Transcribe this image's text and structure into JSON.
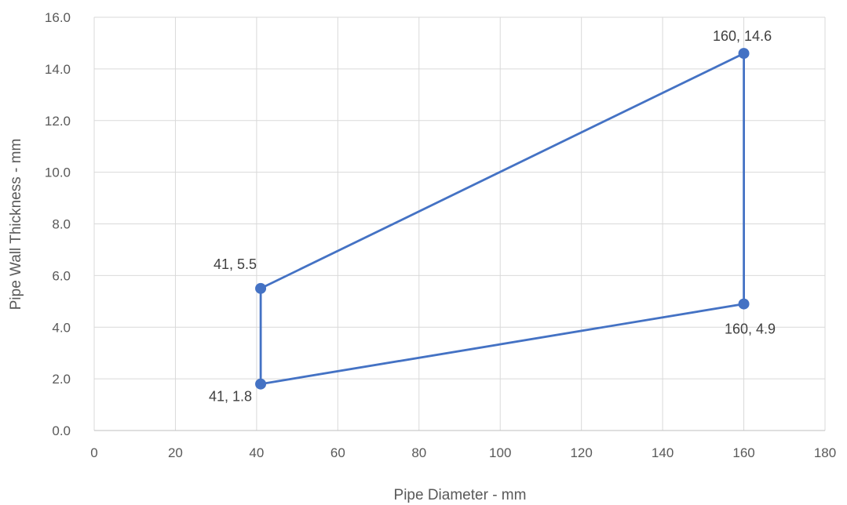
{
  "chart_data": {
    "type": "scatter",
    "title": "",
    "xlabel": "Pipe Diameter - mm",
    "ylabel": "Pipe Wall Thickness - mm",
    "xlim": [
      0,
      180
    ],
    "ylim": [
      0,
      16
    ],
    "x_ticks": [
      "0",
      "20",
      "40",
      "60",
      "80",
      "100",
      "120",
      "140",
      "160",
      "180"
    ],
    "y_ticks": [
      "0.0",
      "2.0",
      "4.0",
      "6.0",
      "8.0",
      "10.0",
      "12.0",
      "14.0",
      "16.0"
    ],
    "grid": true,
    "line_color": "#4472C4",
    "marker": "circle",
    "series": [
      {
        "points": [
          {
            "x": 41,
            "y": 5.5,
            "label": "41, 5.5"
          },
          {
            "x": 41,
            "y": 1.8,
            "label": "41, 1.8"
          },
          {
            "x": 160,
            "y": 4.9,
            "label": "160, 4.9"
          },
          {
            "x": 160,
            "y": 14.6,
            "label": "160, 14.6"
          },
          {
            "x": 41,
            "y": 5.5
          }
        ]
      }
    ]
  }
}
